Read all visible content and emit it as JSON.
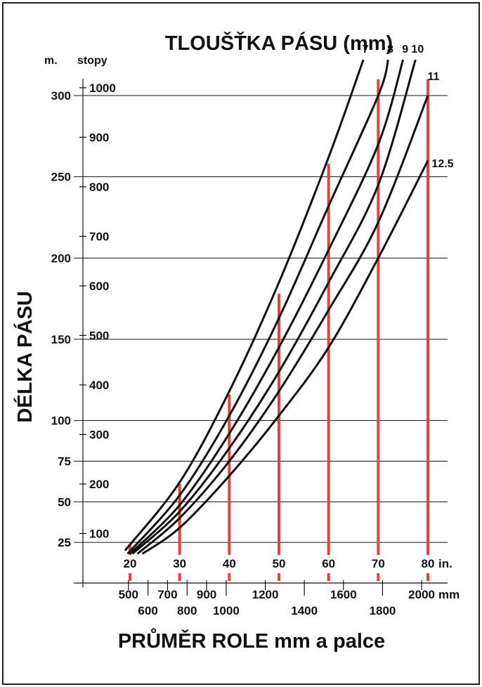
{
  "chart_data": {
    "type": "line",
    "title": "TLOUŠŤKA PÁSU (mm)",
    "xlabel": "PRŮMĚR ROLE mm a palce",
    "ylabel": "DÉLKA  PÁSU",
    "x_unit_inches": "in.",
    "x_unit_mm": "mm",
    "y_unit_m": "m.",
    "y_unit_ft": "stopy",
    "xlim_in": [
      20,
      80
    ],
    "ylim_m": [
      0,
      300
    ],
    "grid": true,
    "y_ticks_m": [
      "25",
      "50",
      "75",
      "100",
      "150",
      "200",
      "250",
      "300"
    ],
    "y_ticks_ft": [
      "100",
      "200",
      "300",
      "400",
      "500",
      "600",
      "700",
      "800",
      "900",
      "1000"
    ],
    "x_ticks_in": [
      "20",
      "30",
      "40",
      "50",
      "60",
      "70",
      "80"
    ],
    "x_ticks_mm_upper": [
      "500",
      "700",
      "900",
      "1200",
      "1600",
      "2000"
    ],
    "x_ticks_mm_lower": [
      "600",
      "800",
      "1000",
      "1400",
      "1800"
    ],
    "series": [
      {
        "name": "7",
        "x": [
          19,
          30,
          40,
          50,
          60,
          67
        ],
        "y": [
          20,
          62,
          118,
          185,
          262,
          322
        ]
      },
      {
        "name": "8",
        "x": [
          19.5,
          30,
          40,
          50,
          60,
          70,
          72
        ],
        "y": [
          18,
          54,
          103,
          163,
          232,
          300,
          322
        ]
      },
      {
        "name": "9",
        "x": [
          20,
          30,
          40,
          50,
          60,
          70,
          75
        ],
        "y": [
          18,
          48,
          92,
          145,
          205,
          270,
          322
        ]
      },
      {
        "name": "10",
        "x": [
          20.5,
          30,
          40,
          50,
          60,
          70,
          77.5
        ],
        "y": [
          18,
          44,
          83,
          130,
          185,
          245,
          322
        ]
      },
      {
        "name": "11",
        "x": [
          21.5,
          30,
          40,
          50,
          60,
          70,
          80
        ],
        "y": [
          18,
          40,
          75,
          118,
          168,
          222,
          300
        ]
      },
      {
        "name": "12.5",
        "x": [
          22.5,
          30,
          40,
          50,
          60,
          70,
          80
        ],
        "y": [
          18,
          34,
          66,
          103,
          145,
          200,
          260
        ]
      }
    ],
    "reference_lines": [
      {
        "x": 20,
        "y_top": 24
      },
      {
        "x": 30,
        "y_top": 61
      },
      {
        "x": 40,
        "y_top": 116
      },
      {
        "x": 50,
        "y_top": 178
      },
      {
        "x": 60,
        "y_top": 258
      },
      {
        "x": 70,
        "y_top": 310
      },
      {
        "x": 80,
        "y_top": 310
      }
    ],
    "colors": {
      "curves": "#111111",
      "reference_lines": "#e8413c",
      "grid": "#111111"
    }
  }
}
